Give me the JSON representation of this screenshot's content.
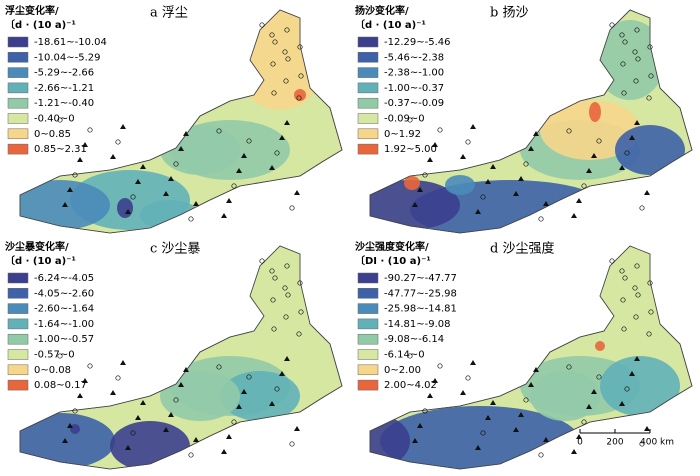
{
  "panels": [
    {
      "label": "a 浮尘",
      "legend_title": "浮尘变化率/",
      "legend_unit": "〔d · (10 a)⁻¹",
      "legend": [
        {
          "range": "-18.61~-10.04",
          "color": "#3b3f8e"
        },
        {
          "range": "-10.04~-5.29",
          "color": "#3d62a8"
        },
        {
          "range": "-5.29~-2.66",
          "color": "#4a8bb9"
        },
        {
          "range": "-2.66~-1.21",
          "color": "#62b1b8"
        },
        {
          "range": "-1.21~-0.40",
          "color": "#92caa8"
        },
        {
          "range": "-0.40~0",
          "color": "#d6e7a2"
        },
        {
          "range": "0~0.85",
          "color": "#f6d68b"
        },
        {
          "range": "0.85~2.31",
          "color": "#e8663c"
        }
      ]
    },
    {
      "label": "b 扬沙",
      "legend_title": "扬沙变化率/",
      "legend_unit": "〔d · (10 a)⁻¹",
      "legend": [
        {
          "range": "-12.29~-5.46",
          "color": "#3b3f8e"
        },
        {
          "range": "-5.46~-2.38",
          "color": "#3d62a8"
        },
        {
          "range": "-2.38~-1.00",
          "color": "#4a8bb9"
        },
        {
          "range": "-1.00~-0.37",
          "color": "#62b1b8"
        },
        {
          "range": "-0.37~-0.09",
          "color": "#92caa8"
        },
        {
          "range": "-0.09~0",
          "color": "#d6e7a2"
        },
        {
          "range": "0~1.92",
          "color": "#f6d68b"
        },
        {
          "range": "1.92~5.00",
          "color": "#e8663c"
        }
      ]
    },
    {
      "label": "c 沙尘暴",
      "legend_title": "沙尘暴变化率/",
      "legend_unit": "〔d · (10 a)⁻¹",
      "legend": [
        {
          "range": "-6.24~-4.05",
          "color": "#3b3f8e"
        },
        {
          "range": "-4.05~-2.60",
          "color": "#3d62a8"
        },
        {
          "range": "-2.60~-1.64",
          "color": "#4a8bb9"
        },
        {
          "range": "-1.64~-1.00",
          "color": "#62b1b8"
        },
        {
          "range": "-1.00~-0.57",
          "color": "#92caa8"
        },
        {
          "range": "-0.57~0",
          "color": "#d6e7a2"
        },
        {
          "range": "0~0.08",
          "color": "#f6d68b"
        },
        {
          "range": "0.08~0.17",
          "color": "#e8663c"
        }
      ]
    },
    {
      "label": "d 沙尘强度",
      "legend_title": "沙尘强度变化率/",
      "legend_unit": "〔DI · (10 a)⁻¹",
      "legend": [
        {
          "range": "-90.27~-47.77",
          "color": "#3b3f8e"
        },
        {
          "range": "-47.77~-25.98",
          "color": "#3d62a8"
        },
        {
          "range": "-25.98~-14.81",
          "color": "#4a8bb9"
        },
        {
          "range": "-14.81~-9.08",
          "color": "#62b1b8"
        },
        {
          "range": "-9.08~-6.14",
          "color": "#92caa8"
        },
        {
          "range": "-6.14~0",
          "color": "#d6e7a2"
        },
        {
          "range": "0~2.00",
          "color": "#f6d68b"
        },
        {
          "range": "2.00~4.02",
          "color": "#e8663c"
        }
      ]
    }
  ],
  "scale_bar": {
    "labels": [
      "0",
      "200",
      "400 km"
    ]
  }
}
